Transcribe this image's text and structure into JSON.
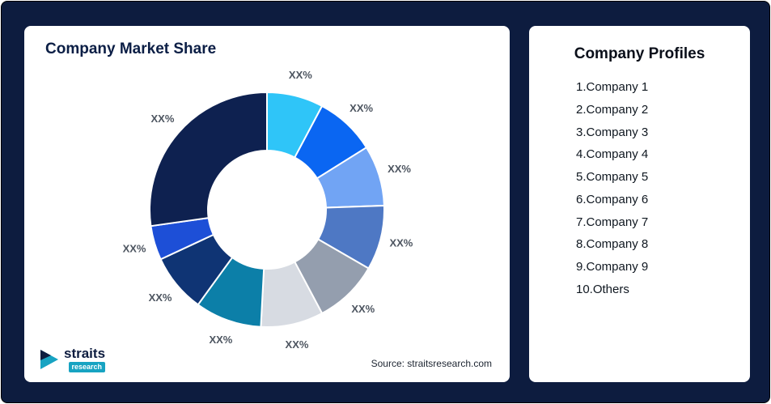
{
  "left_card": {
    "title": "Company Market Share",
    "source": "Source: straitsresearch.com",
    "logo": {
      "name": "straits",
      "sub": "research"
    }
  },
  "right_card": {
    "title": "Company Profiles",
    "items": [
      "1.Company 1",
      "2.Company 2",
      "3.Company 3",
      "4.Company 4",
      "5.Company 5",
      "6.Company 6",
      "7.Company 7",
      "8.Company 8",
      "9.Company 9",
      "10.Others"
    ]
  },
  "chart_data": {
    "type": "pie",
    "subtype": "donut",
    "title": "Company Market Share",
    "legend": "none",
    "source": "Source: straitsresearch.com",
    "segments": [
      {
        "label": "XX%",
        "value": 28,
        "color": "#2fc5f8"
      },
      {
        "label": "XX%",
        "value": 30,
        "color": "#0a66f2"
      },
      {
        "label": "XX%",
        "value": 30,
        "color": "#71a4f4"
      },
      {
        "label": "XX%",
        "value": 32,
        "color": "#4e78c4"
      },
      {
        "label": "XX%",
        "value": 32,
        "color": "#949eae"
      },
      {
        "label": "XX%",
        "value": 31,
        "color": "#d7dbe2"
      },
      {
        "label": "XX%",
        "value": 33,
        "color": "#0c7fa8"
      },
      {
        "label": "XX%",
        "value": 29,
        "color": "#0f3474"
      },
      {
        "label": "XX%",
        "value": 17,
        "color": "#1d4fd7"
      },
      {
        "label": "XX%",
        "value": 98,
        "color": "#0e2150"
      }
    ]
  }
}
